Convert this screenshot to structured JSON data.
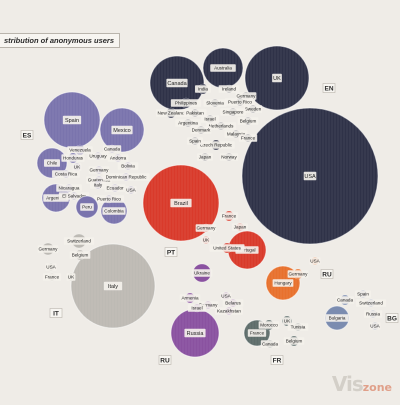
{
  "title": "stribution of anonymous users",
  "watermark": {
    "main": "Vis",
    "accent": "zone"
  },
  "chart_data": {
    "type": "bubble",
    "groups": [
      {
        "code": "EN",
        "color": "#2f3248",
        "countries": [
          {
            "name": "USA",
            "size": 100
          },
          {
            "name": "UK",
            "size": 28
          },
          {
            "name": "Canada",
            "size": 27
          },
          {
            "name": "Australia",
            "size": 13
          },
          {
            "name": "India",
            "size": 3
          },
          {
            "name": "Ireland",
            "size": 3
          },
          {
            "name": "Germany",
            "size": 3
          },
          {
            "name": "Philippines",
            "size": 3
          },
          {
            "name": "Slovenia",
            "size": 3
          },
          {
            "name": "Puerto Rico",
            "size": 2
          },
          {
            "name": "New Zealand",
            "size": 3
          },
          {
            "name": "Sweden",
            "size": 2
          },
          {
            "name": "Pakistan",
            "size": 2
          },
          {
            "name": "Singapore",
            "size": 2
          },
          {
            "name": "Israel",
            "size": 2
          },
          {
            "name": "Argentina",
            "size": 2
          },
          {
            "name": "Netherlands",
            "size": 2
          },
          {
            "name": "Belgium",
            "size": 2
          },
          {
            "name": "Denmark",
            "size": 2
          },
          {
            "name": "Malaysia",
            "size": 2
          },
          {
            "name": "Czech Republic",
            "size": 2
          },
          {
            "name": "France",
            "size": 2
          },
          {
            "name": "Spain",
            "size": 2
          },
          {
            "name": "Japan",
            "size": 2
          },
          {
            "name": "Norway",
            "size": 2
          }
        ]
      },
      {
        "code": "ES",
        "color": "#7a74ad",
        "countries": [
          {
            "name": "Spain",
            "size": 14
          },
          {
            "name": "Mexico",
            "size": 9
          },
          {
            "name": "Chile",
            "size": 6
          },
          {
            "name": "Argentina",
            "size": 5
          },
          {
            "name": "Venezuela",
            "size": 2
          },
          {
            "name": "Canada",
            "size": 2
          },
          {
            "name": "Honduras",
            "size": 2
          },
          {
            "name": "Uruguay",
            "size": 2
          },
          {
            "name": "Andorra",
            "size": 2
          },
          {
            "name": "UK",
            "size": 2
          },
          {
            "name": "Colombia",
            "size": 3
          },
          {
            "name": "Bolivia",
            "size": 2
          },
          {
            "name": "Germany",
            "size": 2
          },
          {
            "name": "Costa Rica",
            "size": 2
          },
          {
            "name": "Guatemala",
            "size": 2
          },
          {
            "name": "Dominican Republic",
            "size": 2
          },
          {
            "name": "Italy",
            "size": 2
          },
          {
            "name": "Nicaragua",
            "size": 2
          },
          {
            "name": "Ecuador",
            "size": 2
          },
          {
            "name": "USA",
            "size": 2
          },
          {
            "name": "El Salvador",
            "size": 2
          },
          {
            "name": "Puerto Rico",
            "size": 2
          },
          {
            "name": "Peru",
            "size": 3
          }
        ]
      },
      {
        "code": "PT",
        "color": "#d93a2b",
        "countries": [
          {
            "name": "Brazil",
            "size": 24
          },
          {
            "name": "Portugal",
            "size": 6
          },
          {
            "name": "Germany",
            "size": 2
          },
          {
            "name": "France",
            "size": 2
          },
          {
            "name": "Japan",
            "size": 2
          },
          {
            "name": "UK",
            "size": 2
          },
          {
            "name": "United States",
            "size": 2
          }
        ]
      },
      {
        "code": "IT",
        "color": "#bdbab4",
        "countries": [
          {
            "name": "Italy",
            "size": 30
          },
          {
            "name": "Germany",
            "size": 2
          },
          {
            "name": "Switzerland",
            "size": 2
          },
          {
            "name": "Belgium",
            "size": 2
          },
          {
            "name": "USA",
            "size": 2
          },
          {
            "name": "France",
            "size": 2
          },
          {
            "name": "UK",
            "size": 2
          }
        ]
      },
      {
        "code": "RU",
        "color": "#8a52a0",
        "countries": [
          {
            "name": "Russia",
            "size": 10
          },
          {
            "name": "Ukraine",
            "size": 2
          },
          {
            "name": "Armenia",
            "size": 2
          },
          {
            "name": "USA",
            "size": 2
          },
          {
            "name": "Belarus",
            "size": 2
          },
          {
            "name": "Germany",
            "size": 2
          },
          {
            "name": "Israel",
            "size": 2
          },
          {
            "name": "Kazakhstan",
            "size": 2
          }
        ]
      },
      {
        "code": "RU",
        "color": "#e8712d",
        "countries": [
          {
            "name": "Hungary",
            "size": 5
          },
          {
            "name": "Germany",
            "size": 2
          },
          {
            "name": "USA",
            "size": 2
          }
        ]
      },
      {
        "code": "FR",
        "color": "#5e6d6b",
        "countries": [
          {
            "name": "France",
            "size": 3
          },
          {
            "name": "Morocco",
            "size": 2
          },
          {
            "name": "UK",
            "size": 2
          },
          {
            "name": "Tunisia",
            "size": 2
          },
          {
            "name": "Belgium",
            "size": 2
          },
          {
            "name": "Canada",
            "size": 2
          }
        ]
      },
      {
        "code": "BG",
        "color": "#7b8cb0",
        "countries": [
          {
            "name": "Bulgaria",
            "size": 2
          },
          {
            "name": "Canada",
            "size": 2
          },
          {
            "name": "Spain",
            "size": 2
          },
          {
            "name": "Switzerland",
            "size": 2
          },
          {
            "name": "Russia",
            "size": 2
          },
          {
            "name": "USA",
            "size": 2
          }
        ]
      }
    ]
  }
}
